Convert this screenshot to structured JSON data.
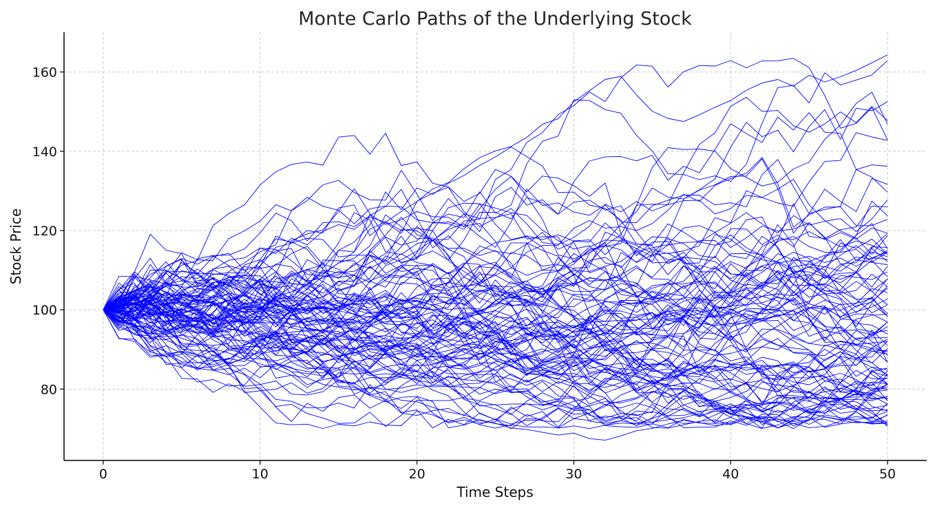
{
  "chart_data": {
    "type": "line",
    "title": "Monte Carlo Paths of the Underlying Stock",
    "xlabel": "Time Steps",
    "ylabel": "Stock Price",
    "xlim": [
      -2.5,
      52.5
    ],
    "ylim": [
      62,
      170
    ],
    "x_ticks": [
      0,
      10,
      20,
      30,
      40,
      50
    ],
    "y_ticks": [
      80,
      100,
      120,
      140,
      160
    ],
    "grid": true,
    "line_color": "#0000ff",
    "series_count": 100,
    "steps": 50,
    "start_value": 100,
    "series": [
      {
        "values": [
          100,
          101.5,
          104.2,
          103.8,
          106.1,
          108.4,
          107.9,
          110.2,
          112.5,
          113.1,
          115.6,
          114.2,
          118.1,
          116.4,
          119.8,
          121.5,
          120.3,
          123.4,
          122.1,
          124.8,
          127.3,
          130.5,
          132.1,
          135.6,
          138.4,
          140.1,
          141.2,
          143.5,
          146.8,
          148.2,
          152.5,
          155.3,
          158.1,
          158.9,
          154.2,
          150.1,
          148.3,
          147.5,
          149.2,
          151.1,
          152.8,
          155.4,
          157.2,
          158.1,
          156.4,
          159.2,
          157.5,
          158.8,
          160.4,
          162.3,
          164.3
        ]
      },
      {
        "values": [
          100,
          99.2,
          97.5,
          95.1,
          94.3,
          92.8,
          91.5,
          90.2,
          89.1,
          87.6,
          86.4,
          85.1,
          83.5,
          82.8,
          81.2,
          80.5,
          79.8,
          80.3,
          78.5,
          77.2,
          76.8,
          75.4,
          74.2,
          73.5,
          72.1,
          71.4,
          70.2,
          69.8,
          69.1,
          68.4,
          68.9,
          67.5,
          67.1,
          68.2,
          69.5,
          70.1,
          71.2,
          72.1,
          71.5,
          70.8,
          71.2,
          72.5,
          73.1,
          72.4,
          71.8,
          72.3,
          73.5,
          72.8,
          71.9,
          71.2,
          71.4
        ]
      }
    ]
  }
}
